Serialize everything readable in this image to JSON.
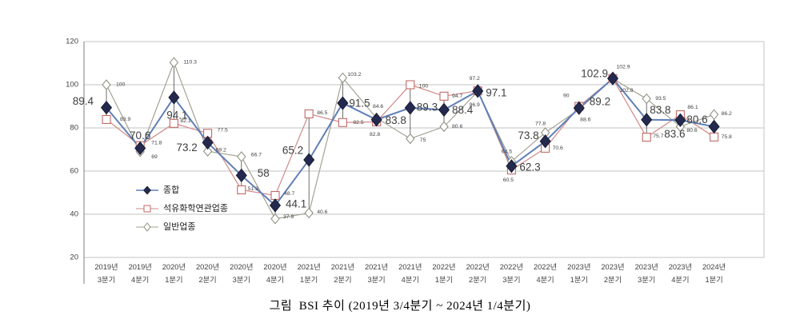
{
  "chart_data": {
    "type": "line",
    "caption": "그림  BSI 추이 (2019년 3/4분기 ~ 2024년 1/4분기)",
    "ylim": [
      20,
      120
    ],
    "yticks": [
      20,
      40,
      60,
      80,
      100,
      120
    ],
    "grid": "horizontal-only",
    "legend_position": "inside-left",
    "high_low_lines": true,
    "axis_color": "#7f7f7f",
    "grid_color": "#c3c3c3",
    "label_color": "#3f3f3f",
    "highlow_color": "#4a4a4a",
    "legend_text_color": "#1a1a1a",
    "categories": [
      "2019년 3분기",
      "2019년 4분기",
      "2020년 1분기",
      "2020년 2분기",
      "2020년 3분기",
      "2020년 4분기",
      "2021년 1분기",
      "2021년 2분기",
      "2021년 3분기",
      "2021년 4분기",
      "2022년 1분기",
      "2022년 2분기",
      "2022년 3분기",
      "2022년 4분기",
      "2023년 1분기",
      "2023년 2분기",
      "2023년 3분기",
      "2023년 4분기",
      "2024년 1분기"
    ],
    "series": [
      {
        "name": "종합",
        "marker": "filled-diamond",
        "line_color": "#5f7fb6",
        "marker_color": "#242a4e",
        "label_style": "large",
        "values": [
          89.4,
          70.6,
          94.1,
          73.2,
          58,
          44.1,
          65.2,
          91.5,
          83.8,
          89.3,
          88.4,
          97.1,
          62.3,
          73.8,
          89.2,
          102.9,
          83.8,
          83.6,
          80.6
        ],
        "label_offsets": [
          [
            -16,
            -8,
            "e"
          ],
          [
            0,
            -16,
            "m"
          ],
          [
            4,
            22,
            "m"
          ],
          [
            -26,
            6,
            "m"
          ],
          [
            20,
            -3,
            "s"
          ],
          [
            13,
            -2,
            "s"
          ],
          [
            -7,
            -12,
            "e"
          ],
          [
            8,
            0,
            "s"
          ],
          [
            11,
            1,
            "s"
          ],
          [
            8,
            -1,
            "s"
          ],
          [
            10,
            0,
            "s"
          ],
          [
            10,
            2,
            "s"
          ],
          [
            10,
            1,
            "s"
          ],
          [
            -8,
            -7,
            "e"
          ],
          [
            13,
            -8,
            "s"
          ],
          [
            -6,
            -6,
            "e"
          ],
          [
            4,
            -12,
            "s"
          ],
          [
            -7,
            17,
            "m"
          ],
          [
            -8,
            -9,
            "e"
          ]
        ]
      },
      {
        "name": "석유화학연관업종",
        "marker": "open-square",
        "line_color": "#d08a88",
        "marker_color": "#c26a66",
        "label_style": "small",
        "values": [
          83.9,
          71.8,
          82.1,
          77.5,
          51.3,
          48.7,
          86.5,
          82.5,
          82.8,
          100,
          94.7,
          97.2,
          60.5,
          70.6,
          90,
          102.9,
          75.7,
          86.1,
          75.8
        ],
        "label_offsets": [
          [
            17,
            0,
            "s"
          ],
          [
            14,
            -3,
            "s"
          ],
          [
            8,
            -3,
            "s"
          ],
          [
            12,
            -4,
            "s"
          ],
          [
            8,
            -1,
            "s"
          ],
          [
            11,
            -2,
            "s"
          ],
          [
            10,
            -1,
            "s"
          ],
          [
            13,
            0,
            "s"
          ],
          [
            -2,
            16,
            "m"
          ],
          [
            11,
            2,
            "s"
          ],
          [
            10,
            0,
            "s"
          ],
          [
            -4,
            -15,
            "m"
          ],
          [
            -4,
            13,
            "m"
          ],
          [
            9,
            0,
            "s"
          ],
          [
            -16,
            -13,
            "m"
          ],
          [
            13,
            -14,
            "m"
          ],
          [
            8,
            -1,
            "s"
          ],
          [
            9,
            -9,
            "s"
          ],
          [
            9,
            0,
            "s"
          ]
        ]
      },
      {
        "name": "일반업종",
        "marker": "open-diamond",
        "line_color": "#a3a393",
        "marker_color": "#8a8a7a",
        "label_style": "small",
        "values": [
          100,
          69,
          110.3,
          69.2,
          66.7,
          37.9,
          40.6,
          103.2,
          84.6,
          75,
          80.6,
          96.9,
          64.5,
          77.8,
          88.6,
          102.8,
          93.5,
          80.6,
          86.2
        ],
        "label_offsets": [
          [
            12,
            0,
            "s"
          ],
          [
            14,
            7,
            "s"
          ],
          [
            12,
            0,
            "s"
          ],
          [
            10,
            -1,
            "s"
          ],
          [
            12,
            -2,
            "s"
          ],
          [
            10,
            -2,
            "s"
          ],
          [
            10,
            -1,
            "s"
          ],
          [
            6,
            -4,
            "s"
          ],
          [
            2,
            -14,
            "m"
          ],
          [
            12,
            2,
            "s"
          ],
          [
            10,
            0,
            "s"
          ],
          [
            -4,
            17,
            "m"
          ],
          [
            -6,
            -12,
            "m"
          ],
          [
            -6,
            -11,
            "m"
          ],
          [
            8,
            13,
            "m"
          ],
          [
            17,
            15,
            "m"
          ],
          [
            11,
            0,
            "s"
          ],
          [
            8,
            5,
            "s"
          ],
          [
            9,
            -1,
            "s"
          ]
        ]
      }
    ]
  }
}
